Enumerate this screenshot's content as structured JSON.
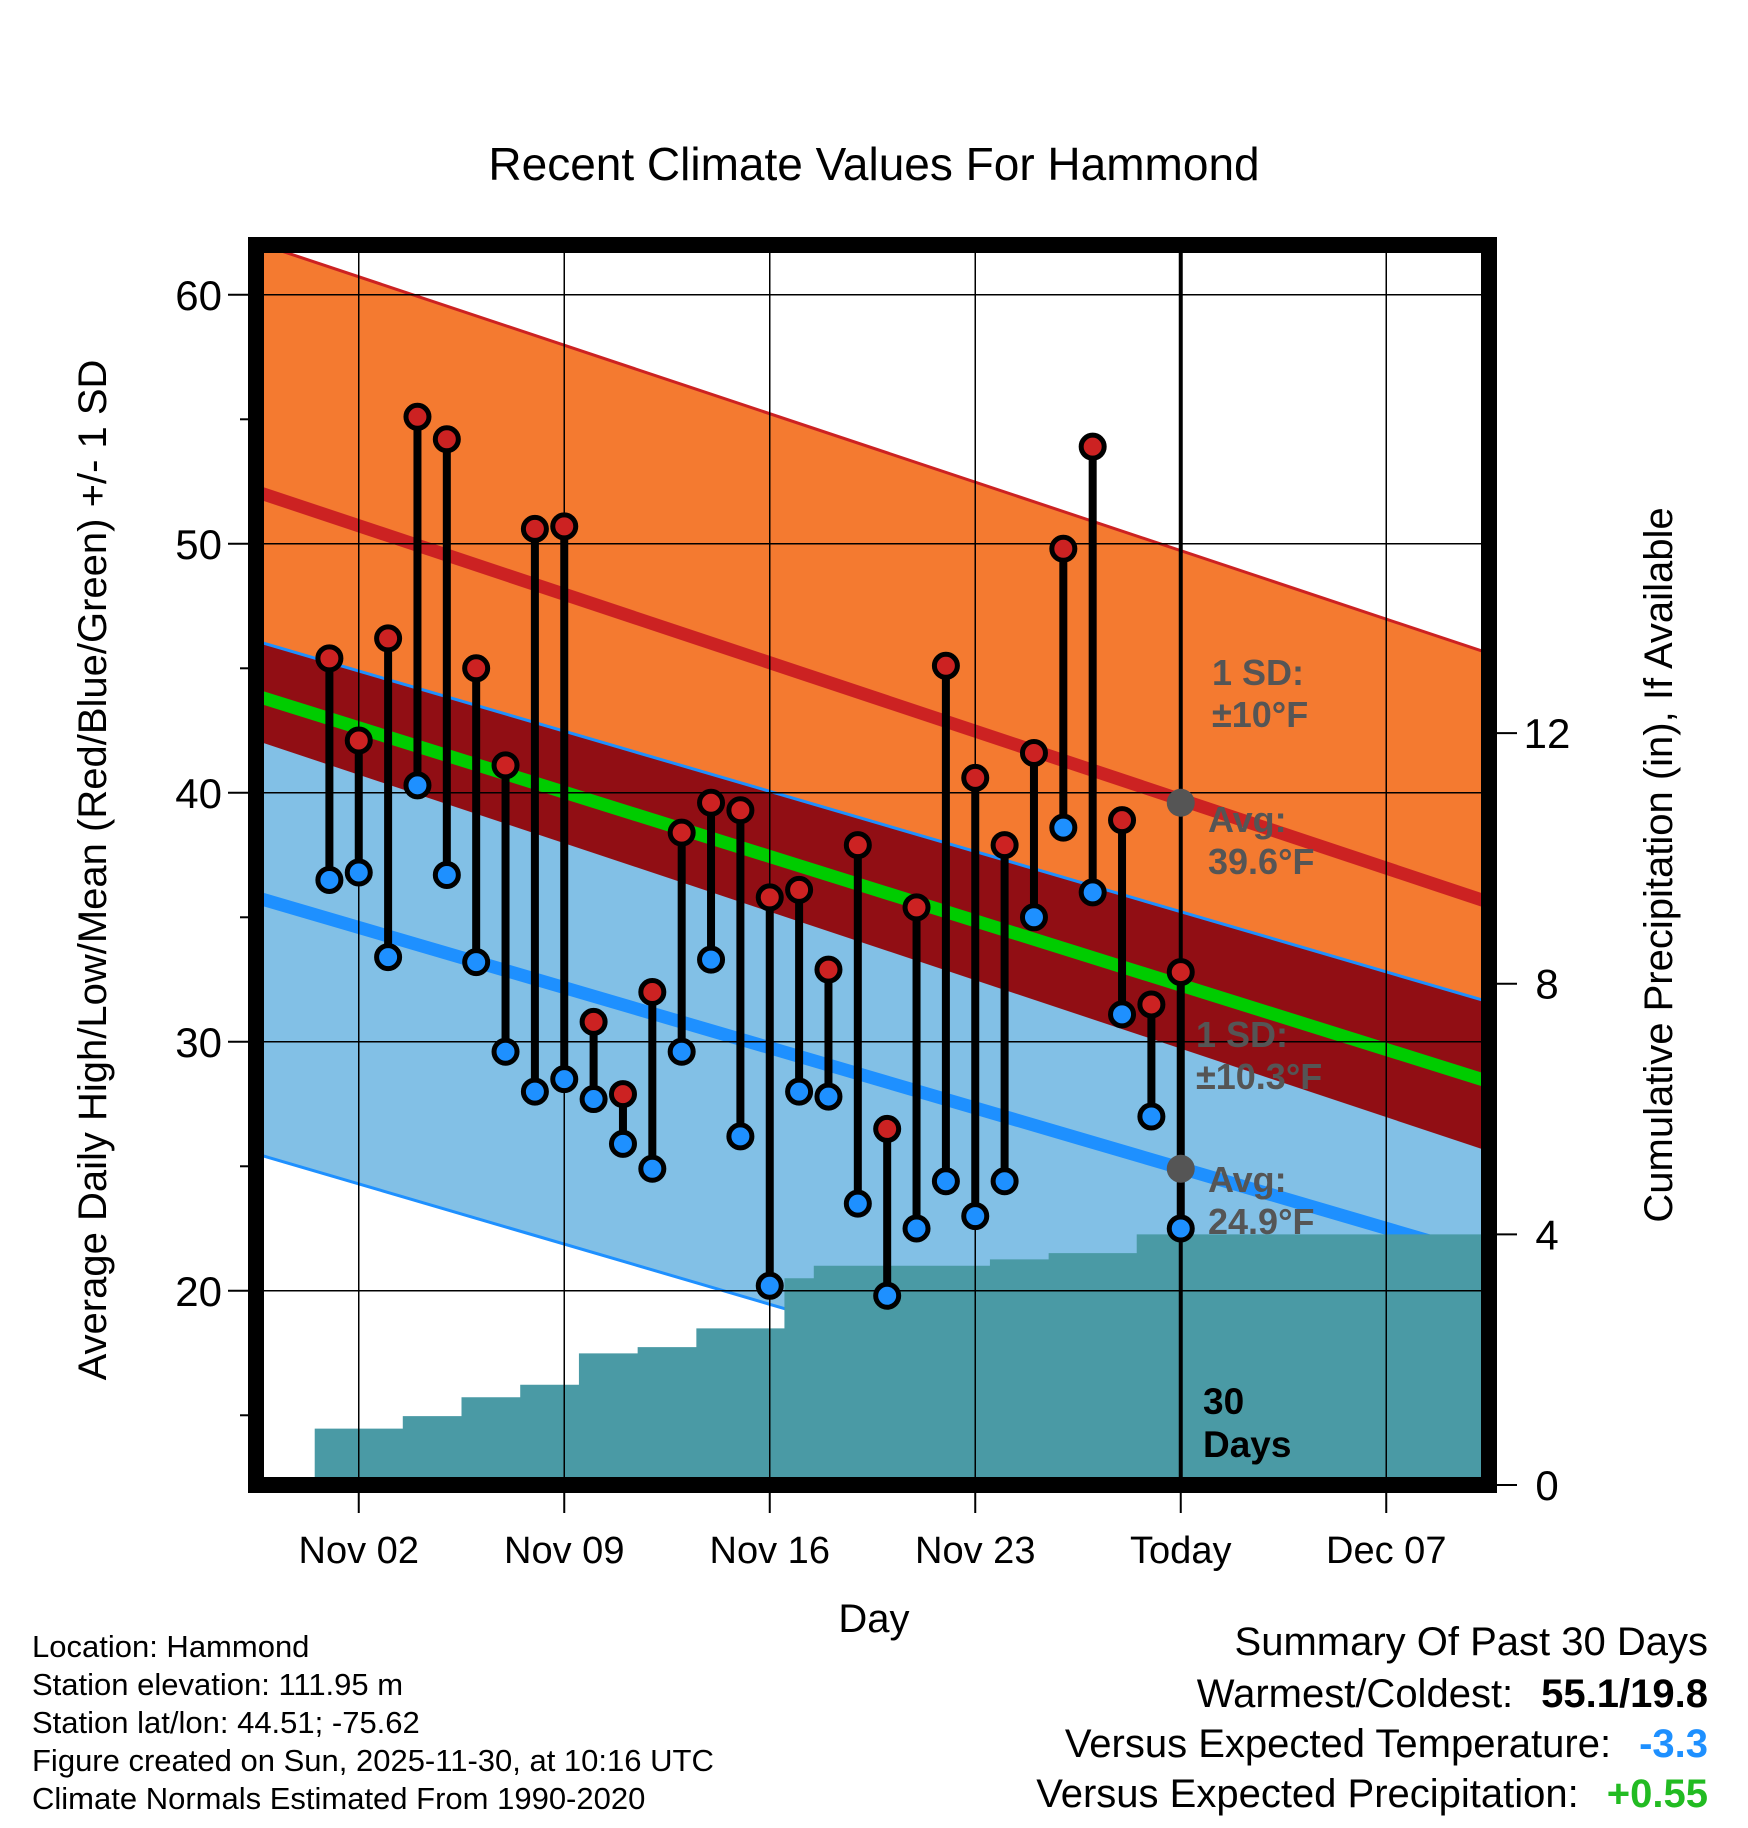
{
  "chart_data": {
    "type": "line",
    "title": "Recent Climate Values For Hammond",
    "xlabel": "Day",
    "ylabel": "Average Daily High/Low/Mean (Red/Blue/Green) +/- 1 SD",
    "y2label": "Cumulative Precipitation (in), If Available",
    "xlim": [
      -2.5,
      39.5
    ],
    "ylim": [
      12.2,
      62
    ],
    "y2lim": [
      0,
      19.79
    ],
    "x_ticks": [
      {
        "day": 1,
        "label": "Nov 02"
      },
      {
        "day": 8,
        "label": "Nov 09"
      },
      {
        "day": 15,
        "label": "Nov 16"
      },
      {
        "day": 22,
        "label": "Nov 23"
      },
      {
        "day": 29,
        "label": "Today"
      },
      {
        "day": 36,
        "label": "Dec 07"
      }
    ],
    "y_ticks": [
      20,
      30,
      40,
      50,
      60
    ],
    "y_minor_ticks": [
      15,
      25,
      35,
      45,
      55
    ],
    "y2_ticks": [
      0,
      4,
      8,
      12
    ],
    "today_day": 29,
    "days_label": [
      "30",
      "Days"
    ],
    "normal_high": {
      "start": 52.1,
      "end": 35.6,
      "sd": 10
    },
    "normal_low": {
      "start": 35.8,
      "end": 21.3,
      "sd": 10.3
    },
    "normal_mean": {
      "start": 43.9,
      "end": 28.4
    },
    "annotations": {
      "high_sd": [
        "1 SD:",
        "±10°F"
      ],
      "high_avg": [
        "Avg:",
        "39.6°F"
      ],
      "low_sd": [
        "1 SD:",
        "±10.3°F"
      ],
      "low_avg": [
        "Avg:",
        "24.9°F"
      ],
      "high_avg_value": 39.6,
      "low_avg_value": 24.9
    },
    "series": [
      {
        "name": "Daily High",
        "color": "#cc2222",
        "values": [
          45.4,
          42.1,
          46.2,
          55.1,
          54.2,
          45.0,
          41.1,
          50.6,
          50.7,
          30.8,
          27.9,
          32.0,
          38.4,
          39.6,
          39.3,
          35.8,
          36.1,
          32.9,
          37.9,
          26.5,
          35.4,
          45.1,
          40.6,
          37.9,
          41.6,
          49.8,
          53.9,
          38.9,
          31.5,
          32.8
        ]
      },
      {
        "name": "Daily Low",
        "color": "#1e90ff",
        "values": [
          36.5,
          36.8,
          33.4,
          40.3,
          36.7,
          33.2,
          29.6,
          28.0,
          28.5,
          27.7,
          25.9,
          24.9,
          29.6,
          33.3,
          26.2,
          20.2,
          28.0,
          27.8,
          23.5,
          19.8,
          22.5,
          24.4,
          23.0,
          24.4,
          35.0,
          38.6,
          36.0,
          31.1,
          27.0,
          22.5
        ]
      }
    ],
    "precip_cumulative": [
      0,
      0.9,
      0.9,
      0.9,
      1.1,
      1.1,
      1.4,
      1.4,
      1.6,
      1.6,
      2.1,
      2.1,
      2.2,
      2.2,
      2.5,
      2.5,
      2.5,
      3.3,
      3.5,
      3.5,
      3.5,
      3.5,
      3.5,
      3.5,
      3.6,
      3.6,
      3.7,
      3.7,
      3.7,
      4.0,
      4.0,
      4.0
    ],
    "precip_color": "#4a9aa5"
  },
  "info": {
    "location": "Location: Hammond",
    "elevation": "Station elevation: 111.95 m",
    "latlon": "Station lat/lon: 44.51; -75.62",
    "created": "Figure created on Sun, 2025-11-30, at 10:16 UTC",
    "normals": "Climate Normals Estimated From 1990-2020"
  },
  "summary": {
    "title": "Summary Of Past 30 Days",
    "warmest_label": "Warmest/Coldest:",
    "warmest_value": "55.1/19.8",
    "temp_label": "Versus Expected Temperature:",
    "temp_value": "-3.3",
    "temp_color": "#1e90ff",
    "precip_label": "Versus Expected Precipitation:",
    "precip_value": "+0.55",
    "precip_color": "#22bb22"
  },
  "colors": {
    "high_band": "#f47a30",
    "high_line": "#cc2222",
    "low_band": "#82c0e6",
    "low_line": "#1e90ff",
    "overlap": "#910e14",
    "mean_line": "#00cc00",
    "annotation": "#555555"
  }
}
